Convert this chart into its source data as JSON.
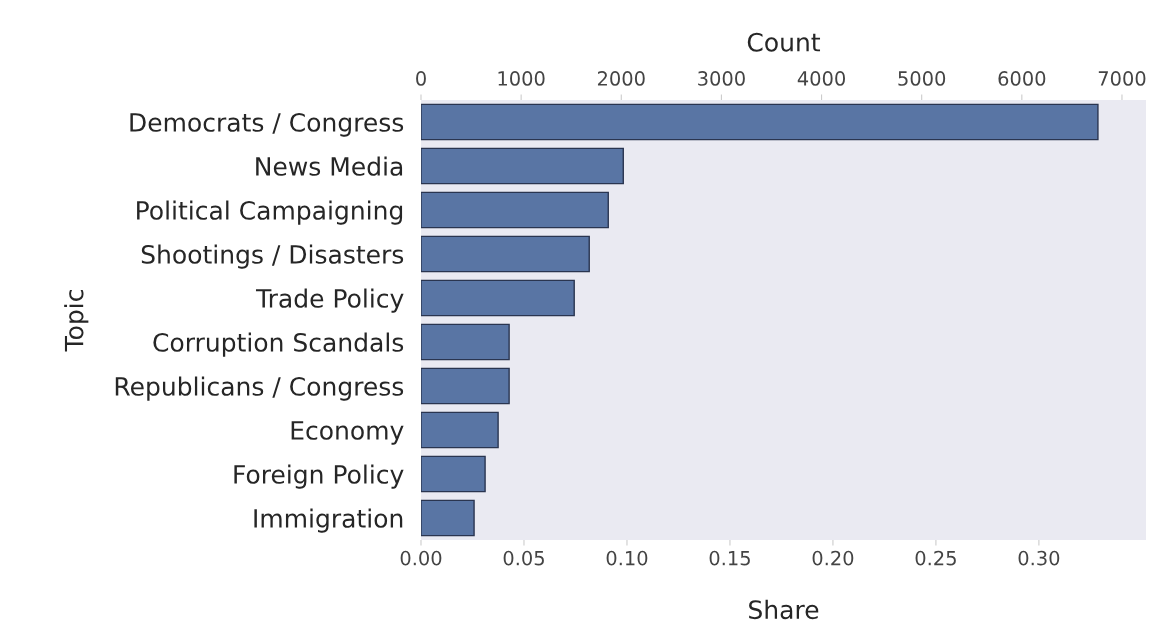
{
  "chart_data": {
    "type": "bar",
    "orientation": "horizontal",
    "xlabel": "Share",
    "x2label": "Count",
    "ylabel": "Topic",
    "categories": [
      "Democrats / Congress",
      "News Media",
      "Political Campaigning",
      "Shootings / Disasters",
      "Trade Policy",
      "Corruption Scandals",
      "Republicans / Congress",
      "Economy",
      "Foreign Policy",
      "Immigration"
    ],
    "series": [
      {
        "axis": "x2",
        "color": "#5975a4",
        "values": [
          6760,
          2020,
          1870,
          1680,
          1530,
          880,
          880,
          770,
          640,
          530
        ]
      }
    ],
    "xlim": [
      0,
      0.352
    ],
    "xticks": [
      {
        "value": 0,
        "label": "0.00"
      },
      {
        "value": 0.05,
        "label": "0.05"
      },
      {
        "value": 0.1,
        "label": "0.10"
      },
      {
        "value": 0.15,
        "label": "0.15"
      },
      {
        "value": 0.2,
        "label": "0.20"
      },
      {
        "value": 0.25,
        "label": "0.25"
      },
      {
        "value": 0.3,
        "label": "0.30"
      }
    ],
    "x2lim": [
      0,
      7240
    ],
    "x2ticks": [
      0,
      1000,
      2000,
      3000,
      4000,
      5000,
      6000,
      7000
    ],
    "grid": false,
    "legend": false
  }
}
